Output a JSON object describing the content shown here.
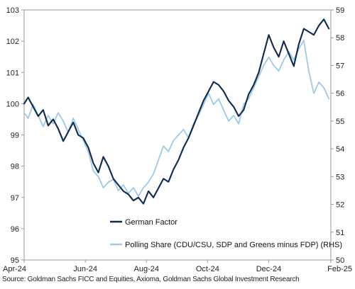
{
  "chart_data": {
    "type": "line",
    "title": "",
    "xlabel": "",
    "ylabel": "",
    "ylim_left": [
      95,
      103
    ],
    "ylim_right": [
      50,
      59
    ],
    "yticks_left": [
      95,
      96,
      97,
      98,
      99,
      100,
      101,
      102,
      103
    ],
    "yticks_right": [
      50,
      51,
      52,
      53,
      54,
      55,
      56,
      57,
      58,
      59
    ],
    "xlim": [
      "2024-04-01",
      "2025-02-01"
    ],
    "xticks": [
      {
        "date": "2024-04-01",
        "label": "Apr-24"
      },
      {
        "date": "2024-06-01",
        "label": "Jun-24"
      },
      {
        "date": "2024-08-01",
        "label": "Aug-24"
      },
      {
        "date": "2024-10-01",
        "label": "Oct-24"
      },
      {
        "date": "2024-12-01",
        "label": "Dec-24"
      },
      {
        "date": "2025-02-01",
        "label": "Feb-25"
      }
    ],
    "legend_position": "bottom-center",
    "series": [
      {
        "name": "German Factor",
        "axis": "left",
        "color": "#0d2a4f",
        "x": [
          "2024-04-01",
          "2024-04-05",
          "2024-04-10",
          "2024-04-15",
          "2024-04-20",
          "2024-04-25",
          "2024-04-30",
          "2024-05-05",
          "2024-05-10",
          "2024-05-15",
          "2024-05-20",
          "2024-05-25",
          "2024-05-30",
          "2024-06-04",
          "2024-06-09",
          "2024-06-14",
          "2024-06-19",
          "2024-06-24",
          "2024-06-29",
          "2024-07-04",
          "2024-07-09",
          "2024-07-14",
          "2024-07-19",
          "2024-07-24",
          "2024-07-29",
          "2024-08-03",
          "2024-08-08",
          "2024-08-13",
          "2024-08-18",
          "2024-08-23",
          "2024-08-28",
          "2024-09-02",
          "2024-09-07",
          "2024-09-12",
          "2024-09-17",
          "2024-09-22",
          "2024-09-27",
          "2024-10-02",
          "2024-10-07",
          "2024-10-12",
          "2024-10-17",
          "2024-10-22",
          "2024-10-27",
          "2024-11-01",
          "2024-11-06",
          "2024-11-11",
          "2024-11-16",
          "2024-11-21",
          "2024-11-26",
          "2024-12-01",
          "2024-12-06",
          "2024-12-11",
          "2024-12-16",
          "2024-12-21",
          "2024-12-26",
          "2024-12-31",
          "2025-01-05",
          "2025-01-10",
          "2025-01-15",
          "2025-01-20",
          "2025-01-25",
          "2025-01-30"
        ],
        "values": [
          100.0,
          100.2,
          99.9,
          99.6,
          99.8,
          99.3,
          99.5,
          99.2,
          98.8,
          99.1,
          99.4,
          99.0,
          98.9,
          98.6,
          98.1,
          97.8,
          98.3,
          98.0,
          97.6,
          97.4,
          97.2,
          97.1,
          96.9,
          97.0,
          96.8,
          97.2,
          97.0,
          97.3,
          97.6,
          97.5,
          97.9,
          98.2,
          98.6,
          98.9,
          99.3,
          99.7,
          100.1,
          100.4,
          100.7,
          100.6,
          100.4,
          100.1,
          99.9,
          99.6,
          99.8,
          100.3,
          100.6,
          101.0,
          101.6,
          102.2,
          101.8,
          101.5,
          102.0,
          101.6,
          101.2,
          101.9,
          102.4,
          102.3,
          102.2,
          102.5,
          102.7,
          102.4
        ]
      },
      {
        "name": "Polling Share (CDU/CSU, SDP and Greens minus FDP) (RHS)",
        "axis": "right",
        "color": "#9ecae6",
        "x": [
          "2024-04-01",
          "2024-04-05",
          "2024-04-10",
          "2024-04-15",
          "2024-04-20",
          "2024-04-25",
          "2024-04-30",
          "2024-05-05",
          "2024-05-10",
          "2024-05-15",
          "2024-05-20",
          "2024-05-25",
          "2024-05-30",
          "2024-06-04",
          "2024-06-09",
          "2024-06-14",
          "2024-06-19",
          "2024-06-24",
          "2024-06-29",
          "2024-07-04",
          "2024-07-09",
          "2024-07-14",
          "2024-07-19",
          "2024-07-24",
          "2024-07-29",
          "2024-08-03",
          "2024-08-08",
          "2024-08-13",
          "2024-08-18",
          "2024-08-23",
          "2024-08-28",
          "2024-09-02",
          "2024-09-07",
          "2024-09-12",
          "2024-09-17",
          "2024-09-22",
          "2024-09-27",
          "2024-10-02",
          "2024-10-07",
          "2024-10-12",
          "2024-10-17",
          "2024-10-22",
          "2024-10-27",
          "2024-11-01",
          "2024-11-06",
          "2024-11-11",
          "2024-11-16",
          "2024-11-21",
          "2024-11-26",
          "2024-12-01",
          "2024-12-06",
          "2024-12-11",
          "2024-12-16",
          "2024-12-21",
          "2024-12-26",
          "2024-12-31",
          "2025-01-05",
          "2025-01-10",
          "2025-01-15",
          "2025-01-20",
          "2025-01-25",
          "2025-01-30"
        ],
        "values": [
          55.3,
          55.1,
          55.6,
          55.2,
          54.8,
          55.2,
          54.9,
          55.3,
          55.0,
          54.6,
          55.1,
          54.7,
          54.3,
          53.9,
          53.2,
          53.0,
          52.6,
          52.8,
          52.9,
          52.5,
          52.7,
          52.4,
          52.6,
          52.3,
          52.6,
          52.8,
          53.1,
          53.6,
          54.1,
          53.9,
          54.3,
          54.5,
          54.7,
          54.4,
          54.9,
          55.2,
          55.6,
          56.0,
          55.6,
          55.8,
          55.4,
          55.0,
          55.2,
          54.9,
          55.6,
          55.8,
          56.2,
          56.6,
          57.0,
          57.3,
          57.0,
          56.8,
          57.2,
          57.5,
          57.2,
          57.6,
          57.9,
          56.8,
          56.0,
          56.4,
          56.2,
          55.8
        ]
      }
    ]
  },
  "source": "Source: Goldman Sachs FICC and Equities, Axioma, Goldman Sachs Global Investment Research"
}
